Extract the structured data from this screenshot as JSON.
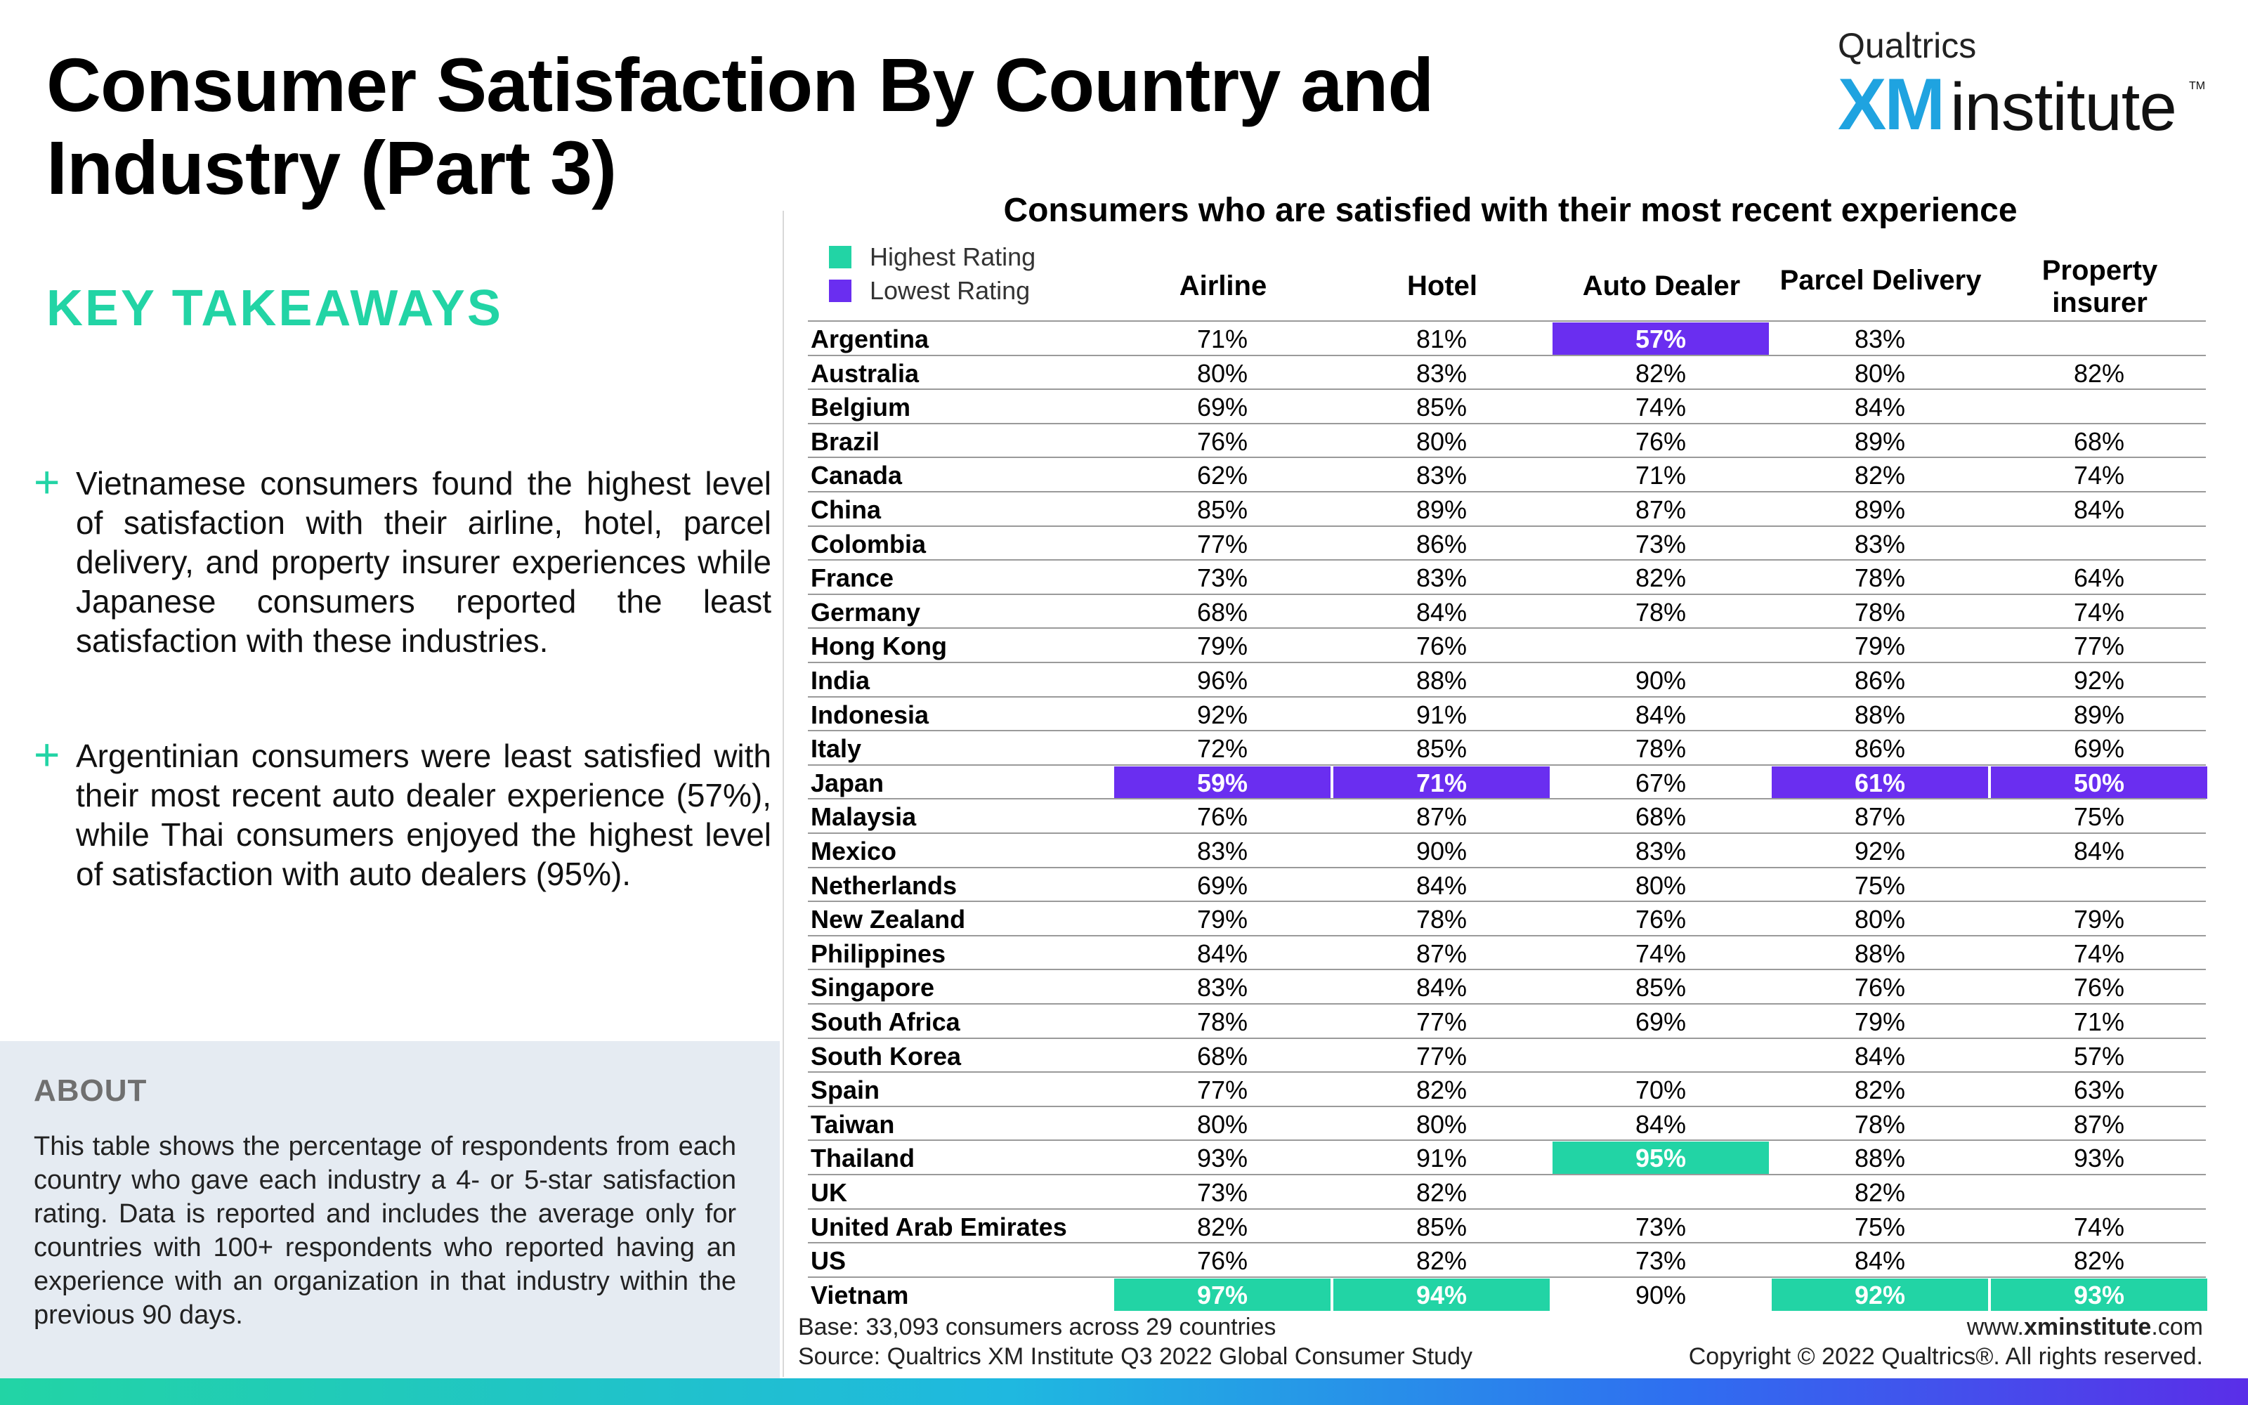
{
  "page": {
    "title": "Consumer Satisfaction By Country and Industry (Part 3)",
    "logo": {
      "top": "Qualtrics",
      "xm": "XM",
      "institute": "institute",
      "tm": "TM"
    },
    "key_takeaways": {
      "heading": "KEY TAKEAWAYS",
      "plus_glyph": "+",
      "items": [
        "Vietnamese consumers found the highest level of satisfaction with their airline, hotel, parcel delivery, and property insurer experiences while Japanese consumers reported the least satisfaction with these industries.",
        "Argentinian consumers were least satisfied with their most recent auto dealer experience (57%), while Thai consumers enjoyed the highest level of satisfaction with auto dealers (95%)."
      ]
    },
    "about": {
      "heading": "ABOUT",
      "text": "This table shows the percentage of respondents from each country who gave each industry a 4- or 5-star satisfaction rating. Data is reported and includes the average only for countries with 100+ respondents who reported having an experience with an organization in that industry within the previous 90 days."
    },
    "footer": {
      "base": "Base: 33,093 consumers across 29 countries",
      "source": "Source: Qualtrics XM Institute Q3 2022 Global Consumer Study",
      "site_prefix": "www.",
      "site_bold": "xminstitute",
      "site_suffix": ".com",
      "copyright": "Copyright © 2022 Qualtrics®. All rights reserved."
    },
    "colors": {
      "highest": "#22d4a5",
      "lowest": "#6a2ef0",
      "accent": "#22d4a5"
    }
  },
  "chart_data": {
    "type": "table",
    "title": "Consumers who are satisfied with their most recent experience",
    "legend": [
      {
        "label": "Highest Rating",
        "color": "#22d4a5"
      },
      {
        "label": "Lowest Rating",
        "color": "#6a2ef0"
      }
    ],
    "columns": [
      "Airline",
      "Hotel",
      "Auto Dealer",
      "Parcel Delivery",
      "Property insurer"
    ],
    "rows": [
      {
        "country": "Argentina",
        "values": [
          "71%",
          "81%",
          "57%",
          "83%",
          ""
        ],
        "flags": [
          "",
          "",
          "low",
          "",
          ""
        ]
      },
      {
        "country": "Australia",
        "values": [
          "80%",
          "83%",
          "82%",
          "80%",
          "82%"
        ],
        "flags": [
          "",
          "",
          "",
          "",
          ""
        ]
      },
      {
        "country": "Belgium",
        "values": [
          "69%",
          "85%",
          "74%",
          "84%",
          ""
        ],
        "flags": [
          "",
          "",
          "",
          "",
          ""
        ]
      },
      {
        "country": "Brazil",
        "values": [
          "76%",
          "80%",
          "76%",
          "89%",
          "68%"
        ],
        "flags": [
          "",
          "",
          "",
          "",
          ""
        ]
      },
      {
        "country": "Canada",
        "values": [
          "62%",
          "83%",
          "71%",
          "82%",
          "74%"
        ],
        "flags": [
          "",
          "",
          "",
          "",
          ""
        ]
      },
      {
        "country": "China",
        "values": [
          "85%",
          "89%",
          "87%",
          "89%",
          "84%"
        ],
        "flags": [
          "",
          "",
          "",
          "",
          ""
        ]
      },
      {
        "country": "Colombia",
        "values": [
          "77%",
          "86%",
          "73%",
          "83%",
          ""
        ],
        "flags": [
          "",
          "",
          "",
          "",
          ""
        ]
      },
      {
        "country": "France",
        "values": [
          "73%",
          "83%",
          "82%",
          "78%",
          "64%"
        ],
        "flags": [
          "",
          "",
          "",
          "",
          ""
        ]
      },
      {
        "country": "Germany",
        "values": [
          "68%",
          "84%",
          "78%",
          "78%",
          "74%"
        ],
        "flags": [
          "",
          "",
          "",
          "",
          ""
        ]
      },
      {
        "country": "Hong Kong",
        "values": [
          "79%",
          "76%",
          "",
          "79%",
          "77%"
        ],
        "flags": [
          "",
          "",
          "",
          "",
          ""
        ]
      },
      {
        "country": "India",
        "values": [
          "96%",
          "88%",
          "90%",
          "86%",
          "92%"
        ],
        "flags": [
          "",
          "",
          "",
          "",
          ""
        ]
      },
      {
        "country": "Indonesia",
        "values": [
          "92%",
          "91%",
          "84%",
          "88%",
          "89%"
        ],
        "flags": [
          "",
          "",
          "",
          "",
          ""
        ]
      },
      {
        "country": "Italy",
        "values": [
          "72%",
          "85%",
          "78%",
          "86%",
          "69%"
        ],
        "flags": [
          "",
          "",
          "",
          "",
          ""
        ]
      },
      {
        "country": "Japan",
        "values": [
          "59%",
          "71%",
          "67%",
          "61%",
          "50%"
        ],
        "flags": [
          "low",
          "low",
          "",
          "low",
          "low"
        ]
      },
      {
        "country": "Malaysia",
        "values": [
          "76%",
          "87%",
          "68%",
          "87%",
          "75%"
        ],
        "flags": [
          "",
          "",
          "",
          "",
          ""
        ]
      },
      {
        "country": "Mexico",
        "values": [
          "83%",
          "90%",
          "83%",
          "92%",
          "84%"
        ],
        "flags": [
          "",
          "",
          "",
          "",
          ""
        ]
      },
      {
        "country": "Netherlands",
        "values": [
          "69%",
          "84%",
          "80%",
          "75%",
          ""
        ],
        "flags": [
          "",
          "",
          "",
          "",
          ""
        ]
      },
      {
        "country": "New Zealand",
        "values": [
          "79%",
          "78%",
          "76%",
          "80%",
          "79%"
        ],
        "flags": [
          "",
          "",
          "",
          "",
          ""
        ]
      },
      {
        "country": "Philippines",
        "values": [
          "84%",
          "87%",
          "74%",
          "88%",
          "74%"
        ],
        "flags": [
          "",
          "",
          "",
          "",
          ""
        ]
      },
      {
        "country": "Singapore",
        "values": [
          "83%",
          "84%",
          "85%",
          "76%",
          "76%"
        ],
        "flags": [
          "",
          "",
          "",
          "",
          ""
        ]
      },
      {
        "country": "South Africa",
        "values": [
          "78%",
          "77%",
          "69%",
          "79%",
          "71%"
        ],
        "flags": [
          "",
          "",
          "",
          "",
          ""
        ]
      },
      {
        "country": "South Korea",
        "values": [
          "68%",
          "77%",
          "",
          "84%",
          "57%"
        ],
        "flags": [
          "",
          "",
          "",
          "",
          ""
        ]
      },
      {
        "country": "Spain",
        "values": [
          "77%",
          "82%",
          "70%",
          "82%",
          "63%"
        ],
        "flags": [
          "",
          "",
          "",
          "",
          ""
        ]
      },
      {
        "country": "Taiwan",
        "values": [
          "80%",
          "80%",
          "84%",
          "78%",
          "87%"
        ],
        "flags": [
          "",
          "",
          "",
          "",
          ""
        ]
      },
      {
        "country": "Thailand",
        "values": [
          "93%",
          "91%",
          "95%",
          "88%",
          "93%"
        ],
        "flags": [
          "",
          "",
          "high",
          "",
          ""
        ]
      },
      {
        "country": "UK",
        "values": [
          "73%",
          "82%",
          "",
          "82%",
          ""
        ],
        "flags": [
          "",
          "",
          "",
          "",
          ""
        ]
      },
      {
        "country": "United Arab Emirates",
        "values": [
          "82%",
          "85%",
          "73%",
          "75%",
          "74%"
        ],
        "flags": [
          "",
          "",
          "",
          "",
          ""
        ]
      },
      {
        "country": "US",
        "values": [
          "76%",
          "82%",
          "73%",
          "84%",
          "82%"
        ],
        "flags": [
          "",
          "",
          "",
          "",
          ""
        ]
      },
      {
        "country": "Vietnam",
        "values": [
          "97%",
          "94%",
          "90%",
          "92%",
          "93%"
        ],
        "flags": [
          "high",
          "high",
          "",
          "high",
          "high"
        ]
      }
    ]
  }
}
